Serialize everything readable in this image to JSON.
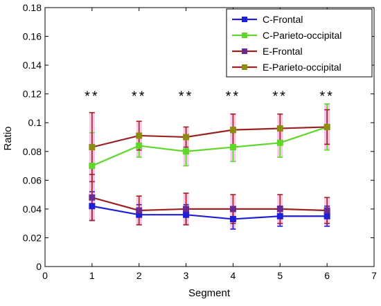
{
  "chart_data": {
    "type": "line",
    "title": "",
    "xlabel": "Segment",
    "ylabel": "Ratio",
    "xlim": [
      0,
      7
    ],
    "ylim": [
      0,
      0.18
    ],
    "xticks": [
      0,
      1,
      2,
      3,
      4,
      5,
      6,
      7
    ],
    "yticks": [
      0,
      0.02,
      0.04,
      0.06,
      0.08,
      0.1,
      0.12,
      0.14,
      0.16,
      0.18
    ],
    "xtick_labels": [
      "0",
      "1",
      "2",
      "3",
      "4",
      "5",
      "6",
      "7"
    ],
    "ytick_labels": [
      "0",
      "0.02",
      "0.04",
      "0.06",
      "0.08",
      "0.1",
      "0.12",
      "0.14",
      "0.16",
      "0.18"
    ],
    "grid": false,
    "legend_position": "top-right",
    "x": [
      1,
      2,
      3,
      4,
      5,
      6
    ],
    "series": [
      {
        "name": "C-Frontal",
        "color": "#1f1fd6",
        "marker_color": "#1f1fd6",
        "values": [
          0.042,
          0.036,
          0.036,
          0.033,
          0.035,
          0.035
        ],
        "err": [
          0.01,
          0.007,
          0.007,
          0.007,
          0.007,
          0.007
        ]
      },
      {
        "name": "C-Parieto-occipital",
        "color": "#5fd62a",
        "marker_color": "#5fd62a",
        "values": [
          0.07,
          0.084,
          0.08,
          0.083,
          0.086,
          0.097
        ],
        "err": [
          0.023,
          0.008,
          0.01,
          0.01,
          0.01,
          0.016
        ]
      },
      {
        "name": "E-Frontal",
        "color": "#9a2222",
        "marker_color": "#6a2a8f",
        "values": [
          0.048,
          0.039,
          0.04,
          0.04,
          0.04,
          0.039
        ],
        "err": [
          0.016,
          0.01,
          0.011,
          0.01,
          0.01,
          0.009
        ]
      },
      {
        "name": "E-Parieto-occipital",
        "color": "#9a2222",
        "marker_color": "#8c8c16",
        "values": [
          0.083,
          0.091,
          0.09,
          0.095,
          0.096,
          0.097
        ],
        "err": [
          0.024,
          0.01,
          0.007,
          0.011,
          0.01,
          0.012
        ]
      }
    ],
    "annotations": [
      {
        "x": 1,
        "y": 0.119,
        "text": "**"
      },
      {
        "x": 2,
        "y": 0.119,
        "text": "**"
      },
      {
        "x": 3,
        "y": 0.119,
        "text": "**"
      },
      {
        "x": 4,
        "y": 0.119,
        "text": "**"
      },
      {
        "x": 5,
        "y": 0.119,
        "text": "**"
      },
      {
        "x": 6,
        "y": 0.119,
        "text": "**"
      }
    ]
  }
}
